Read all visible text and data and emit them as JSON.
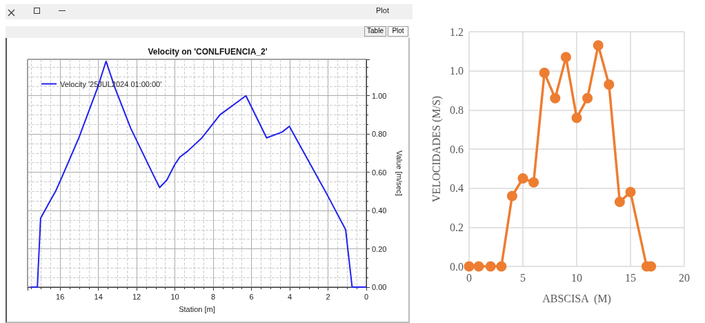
{
  "chart_data": [
    {
      "type": "line",
      "title": "Velocity on 'CONLFUENCIA_2'",
      "xlabel": "Station [m]",
      "ylabel": "Value [m/sec]",
      "annotations": [
        "Plot",
        "Plot",
        "Table"
      ],
      "x": [
        17.52,
        17.19,
        17.02,
        16.58,
        16.24,
        15.97,
        15.02,
        14.05,
        13.6,
        13.13,
        12.31,
        11.1,
        10.8,
        10.42,
        10.01,
        9.74,
        9.34,
        8.59,
        8.12,
        7.65,
        6.29,
        5.21,
        4.4,
        4.02,
        2.03,
        1.08,
        0.74,
        0.03
      ],
      "series": [
        {
          "name": "Velocity '25JUL2024 01:00:00'",
          "color": "#2020f0",
          "values": [
            0,
            0,
            0.36,
            0.44,
            0.5,
            0.56,
            0.78,
            1.04,
            1.18,
            1.04,
            0.83,
            0.58,
            0.52,
            0.56,
            0.64,
            0.68,
            0.71,
            0.78,
            0.84,
            0.9,
            1.0,
            0.78,
            0.81,
            0.84,
            0.48,
            0.3,
            0,
            0
          ]
        }
      ],
      "xlim": [
        17.7,
        0
      ],
      "xticks": [
        0,
        2,
        4,
        6,
        8,
        10,
        12,
        14,
        16
      ],
      "ylim": [
        0,
        1.19
      ],
      "yticks": [
        {
          "value": 0,
          "label": "0.00"
        },
        {
          "value": 0.2,
          "label": "0.20"
        },
        {
          "value": 0.4,
          "label": "0.40"
        },
        {
          "value": 0.6,
          "label": "0.60"
        },
        {
          "value": 0.8,
          "label": "0.80"
        },
        {
          "value": 1,
          "label": "1.00"
        }
      ],
      "grid": true,
      "legend": "top left",
      "marker": "none"
    },
    {
      "type": "line",
      "xlabel": "ABSCISA  (M)",
      "ylabel": "VELOCIDADES (M/S)",
      "x": [
        0,
        0.9,
        2,
        3,
        4,
        5,
        6,
        7,
        8,
        9,
        10,
        11,
        12,
        13,
        14,
        15,
        16.5,
        16.9
      ],
      "series": [
        {
          "color": "#ed7d31",
          "values": [
            0,
            0,
            0,
            0,
            0.36,
            0.45,
            0.43,
            0.99,
            0.86,
            1.07,
            0.76,
            0.86,
            1.13,
            0.93,
            0.33,
            0.38,
            0,
            0
          ]
        }
      ],
      "xlim": [
        0,
        20
      ],
      "xticks": [
        0,
        5,
        10,
        15,
        20
      ],
      "ylim": [
        0,
        1.2
      ],
      "yticks": [
        {
          "value": 0,
          "label": "0.0"
        },
        {
          "value": 0.2,
          "label": "0.2"
        },
        {
          "value": 0.4,
          "label": "0.4"
        },
        {
          "value": 0.6,
          "label": "0.6"
        },
        {
          "value": 0.8,
          "label": "0.8"
        },
        {
          "value": 1,
          "label": "1.0"
        },
        {
          "value": 1.2,
          "label": "1.2"
        }
      ],
      "grid": true,
      "marker": "circle"
    }
  ]
}
